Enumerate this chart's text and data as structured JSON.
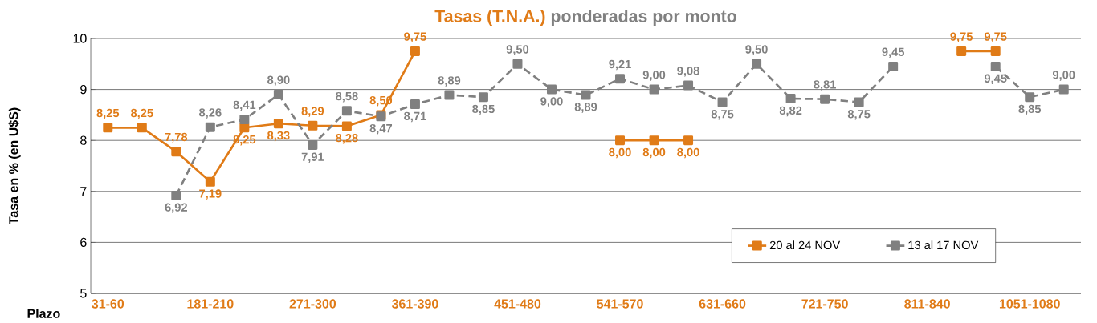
{
  "chart_data": {
    "type": "line",
    "title": "Tasas (T.N.A.)",
    "subtitle": "ponderadas por monto",
    "xlabel": "Plazo",
    "ylabel": "Tasa en % (en U$S)",
    "categories": [
      "31-60",
      null,
      null,
      "181-210",
      null,
      null,
      "271-300",
      null,
      null,
      "361-390",
      null,
      null,
      "451-480",
      null,
      null,
      "541-570",
      null,
      null,
      "631-660",
      null,
      null,
      "721-750",
      null,
      null,
      "811-840",
      null,
      null,
      "1051-1080",
      null
    ],
    "series": [
      {
        "name": "20 al 24 NOV",
        "color": "#e07b17",
        "line_style": "solid",
        "values": [
          8.25,
          8.25,
          7.78,
          7.19,
          8.25,
          8.33,
          8.29,
          8.28,
          8.5,
          9.75,
          null,
          null,
          null,
          null,
          null,
          8.0,
          8.0,
          8.0,
          null,
          null,
          null,
          null,
          null,
          null,
          null,
          9.75,
          9.75,
          null,
          null
        ],
        "value_labels": [
          "8,25",
          "8,25",
          "7,78",
          "7,19",
          "8,25",
          "8,33",
          "8,29",
          "8,28",
          "8,50",
          "9,75",
          null,
          null,
          null,
          null,
          null,
          "8,00",
          "8,00",
          "8,00",
          null,
          null,
          null,
          null,
          null,
          null,
          null,
          "9,75",
          "9,75",
          null,
          null
        ]
      },
      {
        "name": "13 al 17 NOV",
        "color": "#808080",
        "line_style": "dashed",
        "values": [
          null,
          null,
          6.92,
          8.26,
          8.41,
          8.9,
          7.91,
          8.58,
          8.47,
          8.71,
          8.89,
          8.85,
          9.5,
          9.0,
          8.89,
          9.21,
          9.0,
          9.08,
          8.75,
          9.5,
          8.82,
          8.81,
          8.75,
          9.45,
          null,
          null,
          9.45,
          8.85,
          9.0
        ],
        "value_labels": [
          null,
          null,
          "6,92",
          "8,26",
          "8,41",
          "8,90",
          "7,91",
          "8,58",
          "8,47",
          "8,71",
          "8,89",
          "8,85",
          "9,50",
          "9,00",
          "8,89",
          "9,21",
          "9,00",
          "9,08",
          "8,75",
          "9,50",
          "8,82",
          "8,81",
          "8,75",
          "9,45",
          null,
          null,
          "9,45",
          "8,85",
          "9,00"
        ]
      }
    ],
    "ylim": [
      5,
      10
    ],
    "yticks": [
      5,
      6,
      7,
      8,
      9,
      10
    ],
    "grid": "y",
    "legend": "bottom right",
    "marker": "square"
  }
}
